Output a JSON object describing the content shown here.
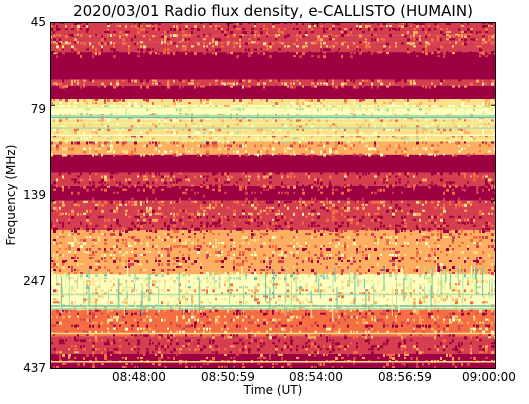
{
  "chart_data": {
    "type": "heatmap",
    "title": "2020/03/01  Radio flux density, e-CALLISTO (HUMAIN)",
    "xlabel": "Time (UT)",
    "ylabel": "Frequency (MHz)",
    "yticks": [
      "45",
      "79",
      "139",
      "247",
      "437"
    ],
    "ytick_values": [
      45,
      79,
      139,
      247,
      437
    ],
    "xticks": [
      "08:48:00",
      "08:50:59",
      "08:54:00",
      "08:56:59",
      "09:00:00"
    ],
    "x_range": [
      "08:45:00",
      "09:00:00"
    ],
    "ylim": [
      45,
      437
    ],
    "colormap": [
      "#9e0142",
      "#d53e4f",
      "#f46d43",
      "#fdae61",
      "#fee08b",
      "#ffffbf",
      "#e6f598",
      "#abdda4",
      "#66c2a5"
    ],
    "frequency_bands": [
      {
        "from": 45,
        "to": 60,
        "level": 0.14
      },
      {
        "from": 60,
        "to": 68,
        "level": 0.22
      },
      {
        "from": 68,
        "to": 79,
        "level": 0.18
      },
      {
        "from": 79,
        "to": 84,
        "level": 0.1
      },
      {
        "from": 84,
        "to": 110,
        "level": 0.0
      },
      {
        "from": 110,
        "to": 117,
        "level": 0.22
      },
      {
        "from": 117,
        "to": 132,
        "level": 0.0
      },
      {
        "from": 132,
        "to": 139,
        "level": 0.5
      },
      {
        "from": 139,
        "to": 155,
        "level": 0.62
      },
      {
        "from": 155,
        "to": 180,
        "level": 0.55
      },
      {
        "from": 180,
        "to": 195,
        "level": 0.4
      },
      {
        "from": 195,
        "to": 215,
        "level": 0.0
      },
      {
        "from": 215,
        "to": 230,
        "level": 0.12
      },
      {
        "from": 230,
        "to": 247,
        "level": 0.04
      },
      {
        "from": 247,
        "to": 280,
        "level": 0.22
      },
      {
        "from": 280,
        "to": 330,
        "level": 0.38
      },
      {
        "from": 330,
        "to": 370,
        "level": 0.6
      },
      {
        "from": 370,
        "to": 400,
        "level": 0.25
      },
      {
        "from": 400,
        "to": 420,
        "level": 0.18
      },
      {
        "from": 420,
        "to": 437,
        "level": 0.1
      }
    ]
  }
}
